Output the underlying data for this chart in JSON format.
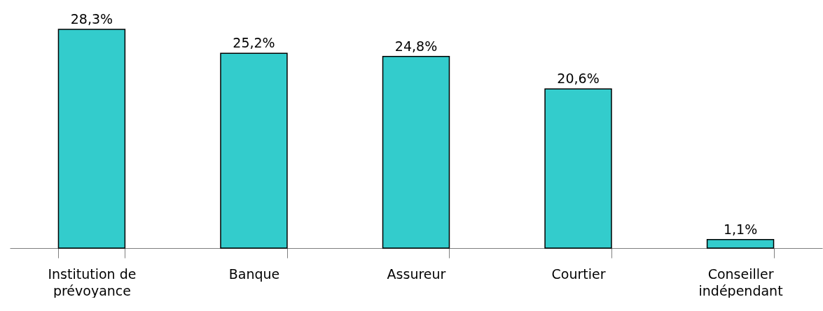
{
  "chart_data": {
    "type": "bar",
    "categories": [
      "Institution de prévoyance",
      "Banque",
      "Assureur",
      "Courtier",
      "Conseiller indépendant"
    ],
    "values": [
      28.3,
      25.2,
      24.8,
      20.6,
      1.1
    ],
    "value_labels": [
      "28,3%",
      "25,2%",
      "24,8%",
      "20,6%",
      "1,1%"
    ],
    "color": "#33cccc"
  }
}
